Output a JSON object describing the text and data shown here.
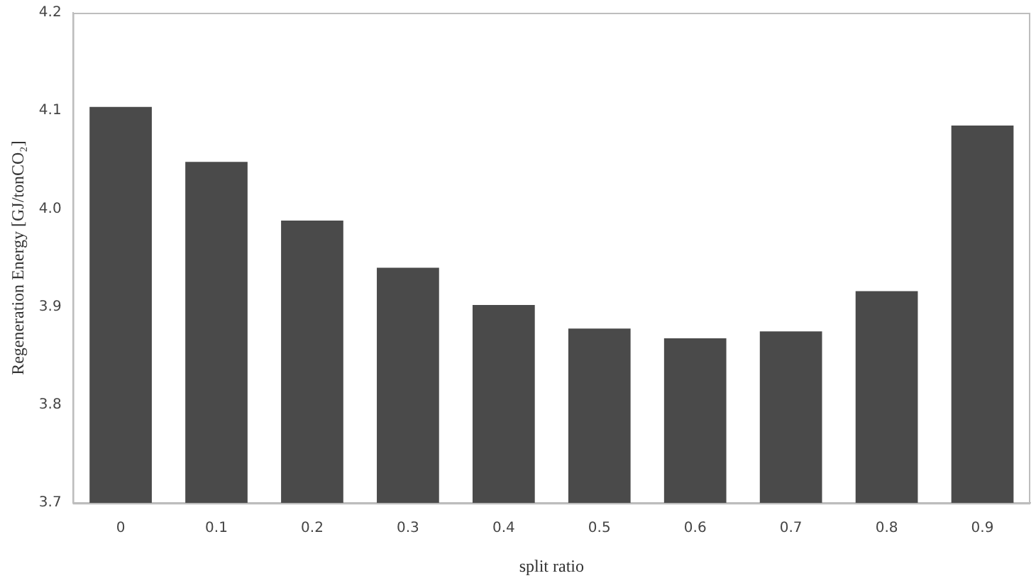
{
  "chart_data": {
    "type": "bar",
    "xlabel": "split ratio",
    "ylabel": "Regeneration Energy [GJ/tonCO₂]",
    "categories": [
      "0",
      "0.1",
      "0.2",
      "0.3",
      "0.4",
      "0.5",
      "0.6",
      "0.7",
      "0.8",
      "0.9"
    ],
    "values": [
      4.104,
      4.048,
      3.988,
      3.94,
      3.902,
      3.878,
      3.868,
      3.875,
      3.916,
      4.085
    ],
    "color": "#4a4a4a",
    "ylim": [
      3.7,
      4.2
    ],
    "yticks": [
      {
        "value": 3.7,
        "label": "3.7"
      },
      {
        "value": 3.8,
        "label": "3.8"
      },
      {
        "value": 3.9,
        "label": "3.9"
      },
      {
        "value": 4.0,
        "label": "4.0"
      },
      {
        "value": 4.1,
        "label": "4.1"
      },
      {
        "value": 4.2,
        "label": "4.2"
      }
    ],
    "grid": false,
    "legend": false
  }
}
